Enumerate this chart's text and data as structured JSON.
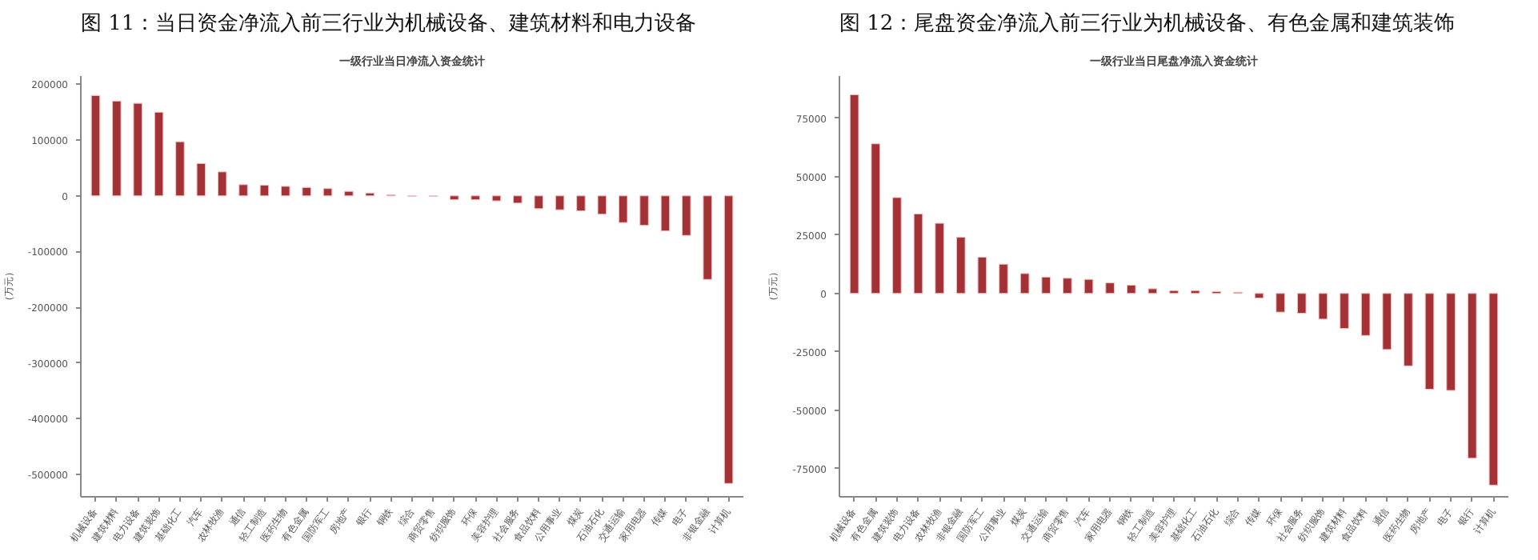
{
  "chart_data": [
    {
      "type": "bar",
      "title": "图 11：当日资金净流入前三行业为机械设备、建筑材料和电力设备",
      "subtitle": "一级行业当日净流入资金统计",
      "ylabel": "（万元）",
      "categories": [
        "机械设备",
        "建筑材料",
        "电力设备",
        "建筑装饰",
        "基础化工",
        "汽车",
        "农林牧渔",
        "通信",
        "轻工制造",
        "医药生物",
        "有色金属",
        "国防军工",
        "房地产",
        "银行",
        "钢铁",
        "综合",
        "商贸零售",
        "纺织服饰",
        "环保",
        "美容护理",
        "社会服务",
        "食品饮料",
        "公用事业",
        "煤炭",
        "石油石化",
        "交通运输",
        "家用电器",
        "传媒",
        "电子",
        "非银金融",
        "计算机"
      ],
      "values": [
        180000,
        170000,
        166000,
        150000,
        97000,
        58000,
        43000,
        20000,
        19000,
        17000,
        15000,
        13000,
        8000,
        5000,
        2000,
        -1000,
        -1000,
        -7000,
        -7000,
        -9000,
        -13000,
        -23000,
        -25000,
        -27000,
        -33000,
        -48000,
        -53000,
        -63000,
        -71000,
        -150000,
        -516000
      ],
      "color": "#a33236",
      "ylim": [
        -540000,
        215000
      ],
      "yticks": [
        -500000,
        -400000,
        -300000,
        -200000,
        -100000,
        0,
        100000,
        200000
      ],
      "grid": false,
      "legend": false
    },
    {
      "type": "bar",
      "title": "图 12：尾盘资金净流入前三行业为机械设备、有色金属和建筑装饰",
      "subtitle": "一级行业当日尾盘净流入资金统计",
      "ylabel": "（万元）",
      "categories": [
        "机械设备",
        "有色金属",
        "建筑装饰",
        "电力设备",
        "农林牧渔",
        "非银金融",
        "国防军工",
        "公用事业",
        "煤炭",
        "交通运输",
        "商贸零售",
        "汽车",
        "家用电器",
        "钢铁",
        "轻工制造",
        "美容护理",
        "基础化工",
        "石油石化",
        "综合",
        "传媒",
        "环保",
        "社会服务",
        "纺织服饰",
        "建筑材料",
        "食品饮料",
        "通信",
        "医药生物",
        "房地产",
        "电子",
        "银行",
        "计算机"
      ],
      "values": [
        85000,
        64000,
        41000,
        34000,
        30000,
        24000,
        15500,
        12500,
        8500,
        7000,
        6500,
        6000,
        4500,
        3500,
        2000,
        1200,
        1200,
        800,
        500,
        -2000,
        -8000,
        -8500,
        -11000,
        -15000,
        -18000,
        -24000,
        -31000,
        -41000,
        -41500,
        -70500,
        -82000
      ],
      "color": "#a33236",
      "ylim": [
        -87000,
        93000
      ],
      "yticks": [
        -75000,
        -50000,
        -25000,
        0,
        25000,
        50000,
        75000
      ],
      "grid": false,
      "legend": false
    }
  ]
}
